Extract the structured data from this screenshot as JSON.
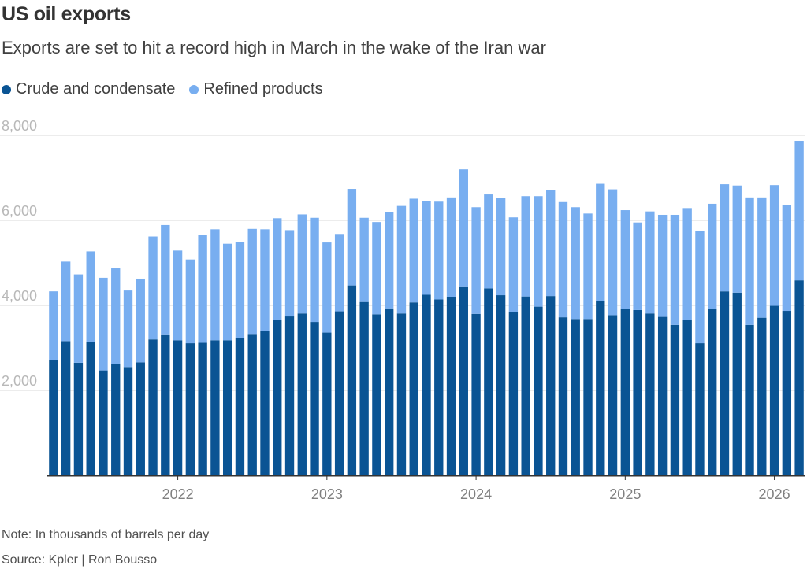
{
  "header": {
    "title": "US oil exports",
    "subtitle": "Exports are set to hit a record high in March in the wake of the Iran war"
  },
  "legend": {
    "items": [
      {
        "label": "Crude and condensate",
        "color": "#0a5494"
      },
      {
        "label": "Refined products",
        "color": "#78aef0"
      }
    ]
  },
  "footer": {
    "note": "Note: In thousands of barrels per day",
    "source": "Source: Kpler | Ron Bousso"
  },
  "chart_data": {
    "type": "bar",
    "stacked": true,
    "title": "US oil exports",
    "subtitle": "Exports are set to hit a record high in March in the wake of the Iran war",
    "unit_note": "In thousands of barrels per day",
    "x_range": [
      "2021-03",
      "2026-03"
    ],
    "x_tick_labels": [
      "2022",
      "2023",
      "2024",
      "2025",
      "2026"
    ],
    "ylim": [
      0,
      8000
    ],
    "y_ticks": [
      2000,
      4000,
      6000,
      8000
    ],
    "y_tick_labels": [
      "2,000",
      "4,000",
      "6,000",
      "8,000"
    ],
    "grid": true,
    "legend_position": "top-left",
    "colors": {
      "crude": "#0a5494",
      "refined": "#78aef0"
    },
    "categories": [
      "2021-03",
      "2021-04",
      "2021-05",
      "2021-06",
      "2021-07",
      "2021-08",
      "2021-09",
      "2021-10",
      "2021-11",
      "2021-12",
      "2022-01",
      "2022-02",
      "2022-03",
      "2022-04",
      "2022-05",
      "2022-06",
      "2022-07",
      "2022-08",
      "2022-09",
      "2022-10",
      "2022-11",
      "2022-12",
      "2023-01",
      "2023-02",
      "2023-03",
      "2023-04",
      "2023-05",
      "2023-06",
      "2023-07",
      "2023-08",
      "2023-09",
      "2023-10",
      "2023-11",
      "2023-12",
      "2024-01",
      "2024-02",
      "2024-03",
      "2024-04",
      "2024-05",
      "2024-06",
      "2024-07",
      "2024-08",
      "2024-09",
      "2024-10",
      "2024-11",
      "2024-12",
      "2025-01",
      "2025-02",
      "2025-03",
      "2025-04",
      "2025-05",
      "2025-06",
      "2025-07",
      "2025-08",
      "2025-09",
      "2025-10",
      "2025-11",
      "2025-12",
      "2026-01",
      "2026-02",
      "2026-03"
    ],
    "series": [
      {
        "name": "Crude and condensate",
        "values": [
          2720,
          3160,
          2650,
          3130,
          2470,
          2620,
          2550,
          2660,
          3200,
          3300,
          3180,
          3110,
          3120,
          3180,
          3180,
          3240,
          3310,
          3400,
          3660,
          3740,
          3810,
          3610,
          3360,
          3860,
          4470,
          4080,
          3790,
          3930,
          3810,
          4070,
          4250,
          4140,
          4190,
          4430,
          3800,
          4400,
          4240,
          3840,
          4210,
          3970,
          4220,
          3720,
          3680,
          3680,
          4110,
          3770,
          3920,
          3890,
          3810,
          3730,
          3540,
          3660,
          3110,
          3920,
          4330,
          4300,
          3540,
          3710,
          3990,
          3870,
          4590
        ]
      },
      {
        "name": "Refined products",
        "values": [
          1610,
          1870,
          2080,
          2140,
          2180,
          2250,
          1800,
          1970,
          2420,
          2590,
          2110,
          1970,
          2530,
          2610,
          2270,
          2260,
          2490,
          2390,
          2390,
          2030,
          2330,
          2450,
          2120,
          1820,
          2270,
          1980,
          2170,
          2270,
          2530,
          2440,
          2200,
          2300,
          2350,
          2770,
          2510,
          2210,
          2280,
          2230,
          2360,
          2600,
          2500,
          2710,
          2630,
          2480,
          2750,
          2960,
          2320,
          2060,
          2400,
          2400,
          2590,
          2630,
          2640,
          2470,
          2520,
          2520,
          3000,
          2830,
          2840,
          2500,
          3280
        ]
      }
    ]
  }
}
